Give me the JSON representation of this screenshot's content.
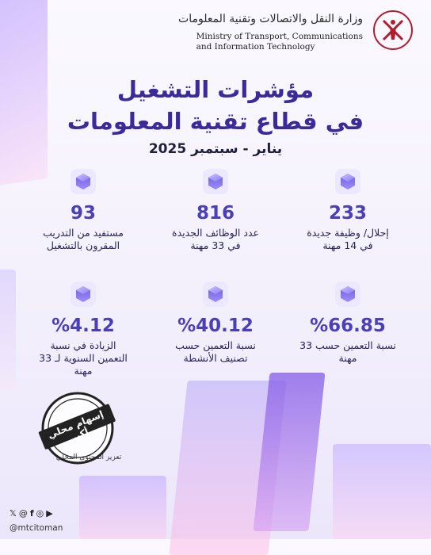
{
  "header": {
    "ministry_ar": "وزارة النقل والاتصالات وتقنية المعلومات",
    "ministry_en_line1": "Ministry of Transport, Communications",
    "ministry_en_line2": "and Information Technology"
  },
  "title_line1": "مؤشرات التشغيل",
  "title_line2": "في قطاع تقنية المعلومات",
  "subtitle": "يناير - سبتمبر 2025",
  "stats": [
    {
      "value": "233",
      "label": "إحلال/ وظيفة جديدة في 14 مهنة"
    },
    {
      "value": "816",
      "label": "عدد الوظائف الجديدة في 33 مهنة"
    },
    {
      "value": "93",
      "label": "مستفيد من التدريب المقرون بالتشغيل"
    },
    {
      "value": "%66.85",
      "label": "نسبة التعمين حسب 33 مهنة"
    },
    {
      "value": "%40.12",
      "label": "نسبة التعمين حسب تصنيف الأنشطة"
    },
    {
      "value": "%4.12",
      "label": "الزيادة في نسبة التعمين السنوية لـ 33 مهنة"
    }
  ],
  "stamp": {
    "line1": "إسهام محلي أكبر",
    "line2": "تعزيز المحتوى المحلي"
  },
  "social": {
    "icons": [
      "x-icon",
      "threads-icon",
      "facebook-icon",
      "instagram-icon",
      "youtube-icon"
    ],
    "handle": "@mtcitoman"
  },
  "colors": {
    "accent": "#3b2a9a",
    "value": "#4a3fb8",
    "cube": "#7b6cf0"
  }
}
